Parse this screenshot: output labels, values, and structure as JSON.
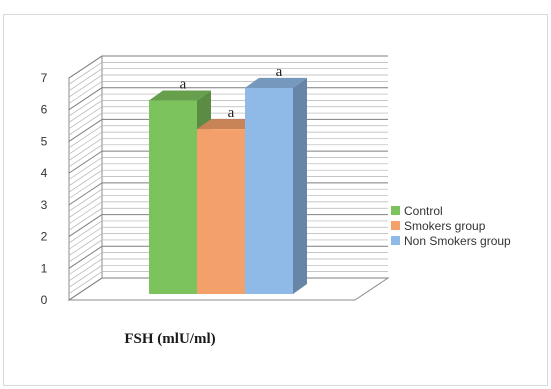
{
  "chart_data": {
    "type": "bar",
    "categories": [
      "FSH (mlU/ml)"
    ],
    "series": [
      {
        "name": "Control",
        "values": [
          6.1
        ],
        "label": "a",
        "color": "#7dc35d"
      },
      {
        "name": "Smokers group",
        "values": [
          5.2
        ],
        "label": "a",
        "color": "#f4a06a"
      },
      {
        "name": "Non Smokers group",
        "values": [
          6.5
        ],
        "label": "a",
        "color": "#8fb9e6"
      }
    ],
    "xlabel": "FSH (mlU/ml)",
    "ylabel": "",
    "ylim": [
      0,
      7
    ],
    "yticks": [
      "0",
      "1",
      "2",
      "3",
      "4",
      "5",
      "6",
      "7"
    ],
    "grid": true,
    "style": "3d-column",
    "legend_position": "right"
  }
}
